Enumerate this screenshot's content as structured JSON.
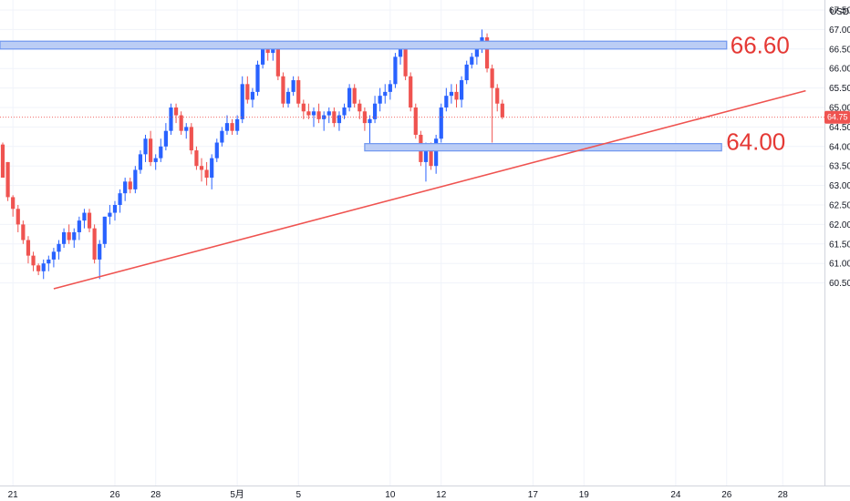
{
  "currency": "USD",
  "chart_data": {
    "type": "candlestick",
    "y_axis": {
      "ticks": [
        "67.50",
        "67.00",
        "66.50",
        "66.00",
        "65.50",
        "65.00",
        "64.50",
        "64.00",
        "63.50",
        "63.00",
        "62.50",
        "62.00",
        "61.50",
        "61.00",
        "60.50"
      ],
      "range": [
        60.3,
        67.75
      ]
    },
    "x_axis": {
      "ticks": [
        {
          "label": "21",
          "index": 2
        },
        {
          "label": "26",
          "index": 22
        },
        {
          "label": "28",
          "index": 30
        },
        {
          "label": "5月",
          "index": 46
        },
        {
          "label": "5",
          "index": 58
        },
        {
          "label": "10",
          "index": 76
        },
        {
          "label": "12",
          "index": 86
        },
        {
          "label": "17",
          "index": 104
        },
        {
          "label": "19",
          "index": 114
        },
        {
          "label": "24",
          "index": 132
        },
        {
          "label": "26",
          "index": 142
        },
        {
          "label": "28",
          "index": 153
        }
      ]
    },
    "current_price": "64.75",
    "current_price_value": 64.75,
    "levels": [
      {
        "label": "66.60",
        "value": 66.6,
        "from_index": 0,
        "to_index": 142
      },
      {
        "label": "64.00",
        "value": 63.98,
        "from_index": 71,
        "to_index": 141
      }
    ],
    "trendline": {
      "from": {
        "index": 10,
        "value": 60.35
      },
      "to": {
        "index": 157.5,
        "value": 65.43
      }
    },
    "colors": {
      "up": "#2962ff",
      "down": "#ef5350",
      "zone_fill": "#bbcdf5",
      "zone_stroke": "#6f96ef",
      "trendline": "#ef5350",
      "label": "#e53935"
    },
    "candles": [
      [
        64.05,
        64.1,
        63.2,
        63.2
      ],
      [
        63.6,
        63.6,
        62.6,
        62.7
      ],
      [
        62.7,
        62.75,
        62.2,
        62.4
      ],
      [
        62.4,
        62.5,
        61.8,
        62.0
      ],
      [
        62.0,
        62.1,
        61.5,
        61.6
      ],
      [
        61.6,
        61.7,
        61.0,
        61.2
      ],
      [
        61.2,
        61.3,
        60.8,
        60.95
      ],
      [
        60.95,
        61.0,
        60.7,
        60.8
      ],
      [
        60.8,
        61.1,
        60.6,
        61.0
      ],
      [
        61.0,
        61.2,
        60.8,
        61.1
      ],
      [
        61.1,
        61.4,
        60.9,
        61.3
      ],
      [
        61.3,
        61.6,
        61.1,
        61.5
      ],
      [
        61.5,
        61.9,
        61.4,
        61.8
      ],
      [
        61.8,
        62.0,
        61.5,
        61.6
      ],
      [
        61.6,
        61.9,
        61.4,
        61.8
      ],
      [
        61.8,
        62.2,
        61.6,
        62.1
      ],
      [
        62.1,
        62.4,
        61.9,
        62.3
      ],
      [
        62.3,
        62.4,
        61.8,
        61.9
      ],
      [
        61.9,
        62.0,
        61.0,
        61.1
      ],
      [
        61.1,
        61.6,
        60.6,
        61.5
      ],
      [
        61.5,
        62.2,
        61.4,
        62.2
      ],
      [
        62.2,
        62.5,
        62.0,
        62.3
      ],
      [
        62.3,
        62.6,
        62.1,
        62.5
      ],
      [
        62.5,
        62.9,
        62.3,
        62.8
      ],
      [
        62.8,
        63.2,
        62.6,
        63.1
      ],
      [
        63.1,
        63.2,
        62.8,
        62.9
      ],
      [
        62.9,
        63.5,
        62.8,
        63.4
      ],
      [
        63.4,
        63.9,
        63.3,
        63.8
      ],
      [
        63.8,
        64.3,
        63.6,
        64.2
      ],
      [
        64.2,
        64.4,
        63.5,
        63.6
      ],
      [
        63.6,
        63.8,
        63.4,
        63.7
      ],
      [
        63.7,
        64.2,
        63.6,
        64.0
      ],
      [
        64.0,
        64.6,
        63.9,
        64.4
      ],
      [
        64.4,
        65.1,
        64.3,
        65.0
      ],
      [
        65.0,
        65.1,
        64.6,
        64.8
      ],
      [
        64.8,
        64.9,
        64.3,
        64.4
      ],
      [
        64.4,
        64.6,
        64.2,
        64.5
      ],
      [
        64.5,
        64.6,
        63.8,
        63.9
      ],
      [
        63.9,
        64.0,
        63.4,
        63.5
      ],
      [
        63.5,
        63.7,
        63.1,
        63.4
      ],
      [
        63.4,
        63.6,
        63.0,
        63.2
      ],
      [
        63.2,
        63.8,
        62.9,
        63.7
      ],
      [
        63.7,
        64.2,
        63.6,
        64.1
      ],
      [
        64.1,
        64.5,
        64.0,
        64.4
      ],
      [
        64.4,
        64.8,
        64.3,
        64.6
      ],
      [
        64.6,
        64.7,
        64.3,
        64.4
      ],
      [
        64.4,
        64.8,
        64.3,
        64.7
      ],
      [
        64.7,
        65.8,
        64.6,
        65.6
      ],
      [
        65.6,
        65.8,
        65.1,
        65.2
      ],
      [
        65.2,
        65.5,
        65.0,
        65.4
      ],
      [
        65.4,
        66.2,
        65.3,
        66.1
      ],
      [
        66.1,
        66.6,
        66.0,
        66.5
      ],
      [
        66.5,
        66.6,
        66.2,
        66.4
      ],
      [
        66.4,
        66.7,
        66.2,
        66.6
      ],
      [
        66.6,
        66.7,
        65.7,
        65.8
      ],
      [
        65.8,
        65.9,
        65.0,
        65.1
      ],
      [
        65.1,
        65.5,
        65.0,
        65.4
      ],
      [
        65.4,
        65.8,
        65.3,
        65.7
      ],
      [
        65.7,
        65.8,
        65.0,
        65.1
      ],
      [
        65.1,
        65.2,
        64.7,
        64.9
      ],
      [
        64.9,
        65.1,
        64.7,
        64.8
      ],
      [
        64.8,
        65.0,
        64.5,
        64.9
      ],
      [
        64.9,
        65.1,
        64.6,
        64.7
      ],
      [
        64.7,
        64.9,
        64.4,
        64.8
      ],
      [
        64.8,
        65.0,
        64.6,
        64.9
      ],
      [
        64.9,
        65.0,
        64.5,
        64.6
      ],
      [
        64.6,
        64.9,
        64.4,
        64.8
      ],
      [
        64.8,
        65.1,
        64.7,
        65.0
      ],
      [
        65.0,
        65.6,
        64.9,
        65.5
      ],
      [
        65.5,
        65.6,
        65.0,
        65.1
      ],
      [
        65.1,
        65.2,
        64.7,
        64.9
      ],
      [
        64.9,
        65.0,
        64.4,
        64.6
      ],
      [
        64.6,
        64.8,
        63.9,
        64.7
      ],
      [
        64.7,
        65.3,
        64.6,
        65.1
      ],
      [
        65.1,
        65.5,
        64.9,
        65.3
      ],
      [
        65.3,
        65.6,
        65.1,
        65.4
      ],
      [
        65.4,
        65.7,
        65.2,
        65.6
      ],
      [
        65.6,
        66.4,
        65.5,
        66.3
      ],
      [
        66.3,
        66.6,
        66.1,
        66.5
      ],
      [
        66.5,
        66.6,
        65.7,
        65.8
      ],
      [
        65.8,
        65.9,
        64.9,
        65.0
      ],
      [
        65.0,
        65.1,
        64.2,
        64.3
      ],
      [
        64.3,
        64.4,
        63.5,
        63.6
      ],
      [
        63.6,
        64.1,
        63.1,
        63.9
      ],
      [
        63.9,
        64.1,
        63.4,
        63.5
      ],
      [
        63.5,
        64.3,
        63.3,
        64.2
      ],
      [
        64.2,
        65.1,
        64.1,
        65.0
      ],
      [
        65.0,
        65.5,
        64.9,
        65.3
      ],
      [
        65.3,
        65.6,
        65.1,
        65.4
      ],
      [
        65.4,
        65.6,
        65.0,
        65.2
      ],
      [
        65.2,
        65.8,
        65.0,
        65.7
      ],
      [
        65.7,
        66.2,
        65.6,
        66.1
      ],
      [
        66.1,
        66.4,
        66.0,
        66.3
      ],
      [
        66.3,
        66.6,
        66.1,
        66.5
      ],
      [
        66.5,
        67.0,
        66.4,
        66.8
      ],
      [
        66.8,
        66.9,
        65.9,
        66.0
      ],
      [
        66.0,
        66.1,
        64.1,
        65.5
      ],
      [
        65.5,
        65.6,
        64.9,
        65.1
      ],
      [
        65.1,
        65.2,
        64.7,
        64.75
      ]
    ]
  }
}
